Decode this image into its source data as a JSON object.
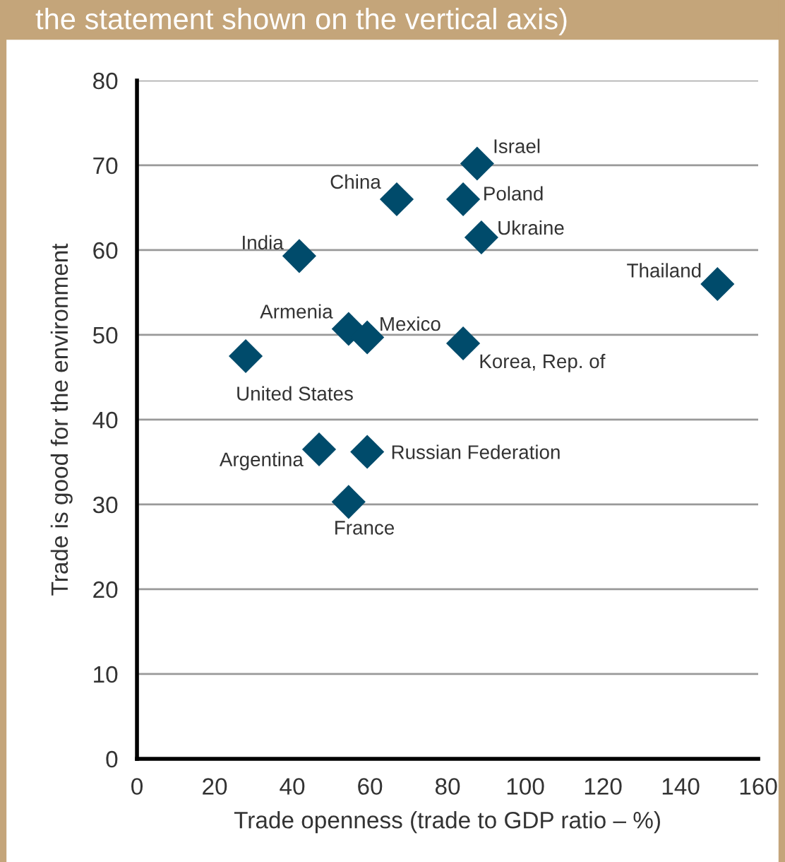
{
  "chart_data": {
    "type": "scatter",
    "subtitle": "the statement shown on the vertical axis)",
    "xlabel": "Trade openness (trade to GDP ratio – %)",
    "ylabel": "Trade is good for the environment",
    "x": [
      28,
      41.8,
      54.5,
      59.3,
      66.9,
      84,
      87.6,
      88.7,
      84,
      149.5,
      46.9,
      59.3,
      54.5
    ],
    "values": [
      47.5,
      59.3,
      50.7,
      49.7,
      66,
      66,
      70.2,
      61.5,
      49,
      56,
      36.5,
      36.2,
      30.3
    ],
    "color": "#004b6b",
    "marker": "diamond",
    "annotations": [
      {
        "text": "United States",
        "x": 28,
        "y": 47.5
      },
      {
        "text": "India",
        "x": 41.8,
        "y": 59.3
      },
      {
        "text": "Armenia",
        "x": 54.5,
        "y": 50.7
      },
      {
        "text": "Mexico",
        "x": 59.3,
        "y": 49.7
      },
      {
        "text": "China",
        "x": 66.9,
        "y": 66
      },
      {
        "text": "Poland",
        "x": 84,
        "y": 66
      },
      {
        "text": "Israel",
        "x": 87.6,
        "y": 70.2
      },
      {
        "text": "Ukraine",
        "x": 88.7,
        "y": 61.5
      },
      {
        "text": "Korea, Rep. of",
        "x": 84,
        "y": 49
      },
      {
        "text": "Thailand",
        "x": 149.5,
        "y": 56
      },
      {
        "text": "Argentina",
        "x": 46.9,
        "y": 36.5
      },
      {
        "text": "Russian Federation",
        "x": 59.3,
        "y": 36.2
      },
      {
        "text": "France",
        "x": 54.5,
        "y": 30.3
      }
    ],
    "xlim": [
      0,
      160
    ],
    "xticks": [
      0,
      20,
      40,
      60,
      80,
      100,
      120,
      140,
      160
    ],
    "ylim": [
      0,
      80
    ],
    "yticks": [
      0,
      10,
      20,
      30,
      40,
      50,
      60,
      70,
      80
    ],
    "grid": "y"
  }
}
